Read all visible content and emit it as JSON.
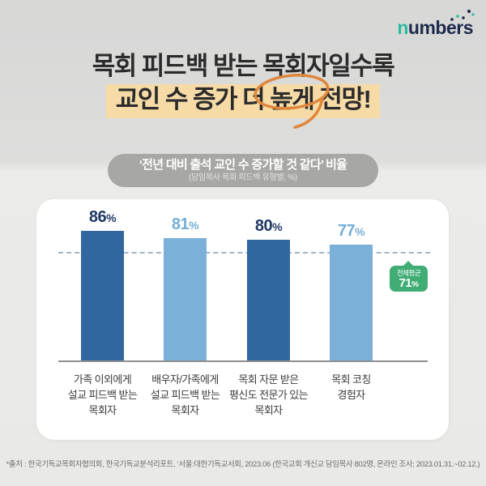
{
  "brand": {
    "name_first": "n",
    "name_rest": "umbers"
  },
  "icons": {
    "logo_dots": "scatter-trend-dots-icon",
    "headline_annotation": "hand-drawn-circle-icon",
    "badge_arrow": "arrow-up-pointer-icon"
  },
  "title": {
    "line1": "목회 피드백 받는 목회자일수록",
    "line2_pre": "교인 수 증가 더 ",
    "line2_circled": "높게",
    "line2_post": " 전망!"
  },
  "subtitle": {
    "line1": "‘전년 대비 출석 교인 수 증가할 것 같다’ 비율",
    "line2": "(담임목사 목회 피드백 유형별, %)"
  },
  "chart_data": {
    "type": "bar",
    "title": "‘전년 대비 출석 교인 수 증가할 것 같다’ 비율",
    "subtitle": "(담임목사 목회 피드백 유형별, %)",
    "unit": "%",
    "categories": [
      "가족 이외에게\n설교 피드백 받는\n목회자",
      "배우자/가족에게\n설교 피드백 받는\n목회자",
      "목회 자문 받은\n평신도 전문가 있는\n목회자",
      "목회 코칭\n경험자"
    ],
    "values": [
      86,
      81,
      80,
      77
    ],
    "bar_colors": [
      "#31669e",
      "#7bb1d8",
      "#31669e",
      "#7bb1d8"
    ],
    "value_label_colors": [
      "#1f3864",
      "#74aed6",
      "#1f3864",
      "#74aed6"
    ],
    "average": {
      "label": "전체평균",
      "value": 71,
      "color": "#3fad74"
    },
    "xlabel": "",
    "ylabel": "",
    "ylim": [
      0,
      100
    ],
    "grid": false,
    "legend": false,
    "average_line_style": "dashed"
  },
  "colors": {
    "highlight": "#f6dba7",
    "annotation_orange": "#e0863a",
    "pill_gray": "#a7a7a5",
    "brand_teal": "#2db9a0",
    "brand_navy": "#1e2b4e"
  },
  "footer": {
    "source": "*출처 : 한국기독교목회자협의회, 한국기독교분석리포트, ‘서울:대한기독교서회, 2023.06 (한국교회 개신교 담임목사 802명, 온라인 조사; 2023.01.31.~02.12.)"
  }
}
